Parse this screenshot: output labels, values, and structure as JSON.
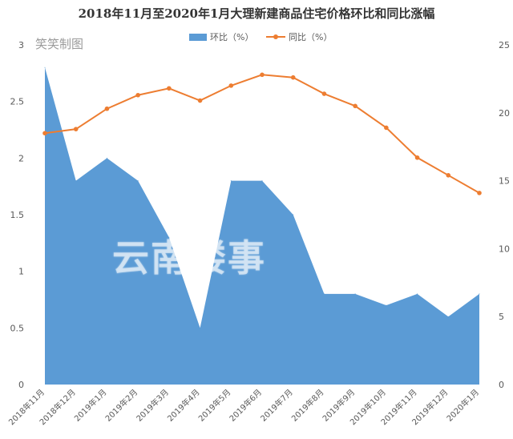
{
  "title": "2018年11月至2020年1月大理新建商品住宅价格环比和同比涨幅",
  "corner_mark": "笑笑制图",
  "watermark": "云南楼事",
  "legend": {
    "area_label": "环比（%）",
    "line_label": "同比（%）"
  },
  "colors": {
    "area": "#5b9bd5",
    "line": "#ed7d31"
  },
  "chart_data": {
    "type": "area",
    "title": "2018年11月至2020年1月大理新建商品住宅价格环比和同比涨幅",
    "categories": [
      "2018年11月",
      "2018年12月",
      "2019年1月",
      "2019年2月",
      "2019年3月",
      "2019年4月",
      "2019年5月",
      "2019年6月",
      "2019年7月",
      "2019年8月",
      "2019年9月",
      "2019年10月",
      "2019年11月",
      "2019年12月",
      "2020年1月"
    ],
    "series": [
      {
        "name": "环比（%）",
        "type": "area",
        "axis": "left",
        "values": [
          2.8,
          1.8,
          2.0,
          1.8,
          1.3,
          0.5,
          1.8,
          1.8,
          1.5,
          0.8,
          0.8,
          0.7,
          0.8,
          0.6,
          0.8
        ]
      },
      {
        "name": "同比（%）",
        "type": "line",
        "axis": "right",
        "values": [
          18.5,
          18.8,
          20.3,
          21.3,
          21.8,
          20.9,
          22.0,
          22.8,
          22.6,
          21.4,
          20.5,
          18.9,
          16.7,
          15.4,
          14.1
        ]
      }
    ],
    "y_left": {
      "min": 0,
      "max": 3,
      "ticks": [
        "0",
        "0.5",
        "1",
        "1.5",
        "2",
        "2.5",
        "3"
      ],
      "tick_values": [
        0,
        0.5,
        1,
        1.5,
        2,
        2.5,
        3
      ]
    },
    "y_right": {
      "min": 0,
      "max": 25,
      "ticks": [
        "0",
        "5",
        "10",
        "15",
        "20",
        "25"
      ],
      "tick_values": [
        0,
        5,
        10,
        15,
        20,
        25
      ]
    },
    "grid": false,
    "legend_position": "top"
  }
}
